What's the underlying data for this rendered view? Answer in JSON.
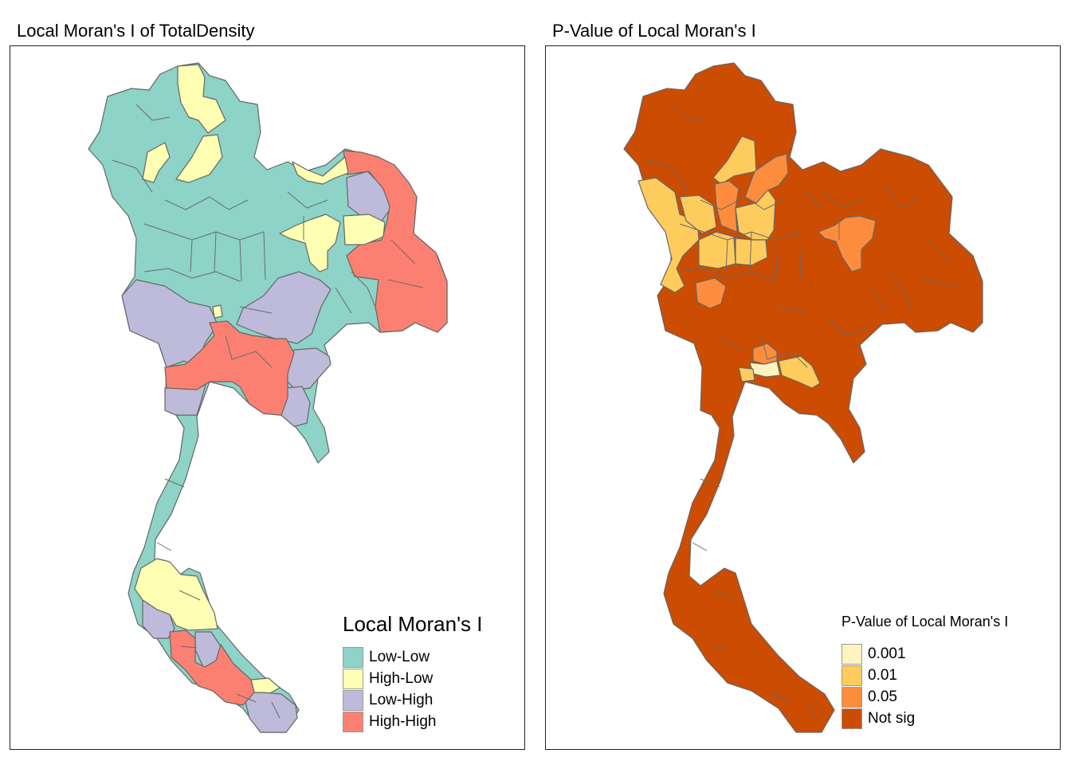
{
  "left_panel": {
    "title": "Local Moran's I of TotalDensity",
    "legend": {
      "title": "Local Moran's I",
      "items": [
        {
          "label": "Low-Low",
          "color": "#8dd3c7"
        },
        {
          "label": "High-Low",
          "color": "#ffffb3"
        },
        {
          "label": "Low-High",
          "color": "#bebada"
        },
        {
          "label": "High-High",
          "color": "#fb8072"
        }
      ]
    }
  },
  "right_panel": {
    "title": "P-Value of Local Moran's I",
    "legend": {
      "title": "P-Value of Local Moran's I",
      "items": [
        {
          "label": "0.001",
          "color": "#fff3bf"
        },
        {
          "label": "0.01",
          "color": "#fecc5c"
        },
        {
          "label": "0.05",
          "color": "#fd8d3c"
        },
        {
          "label": "Not sig",
          "color": "#cc4c02"
        }
      ]
    }
  },
  "border_color": "#666666"
}
